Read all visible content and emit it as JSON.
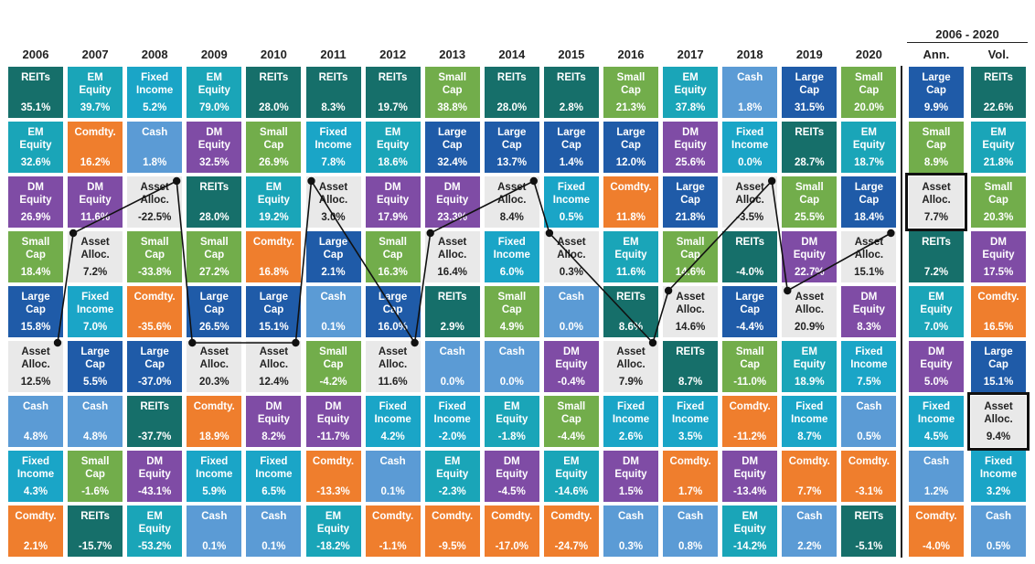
{
  "colors": {
    "REITs": "#166f6a",
    "EM Equity": "#1aa5b8",
    "Fixed Income": "#1aa5c7",
    "Cash": "#5b9bd5",
    "Comdty.": "#ef7e2d",
    "DM Equity": "#7f4ca5",
    "Small Cap": "#72ad4b",
    "Large Cap": "#1f5ba8",
    "Asset Alloc.": "#e9e9e9"
  },
  "period_label": "2006 - 2020",
  "chart_data": {
    "type": "table",
    "years": [
      "2006",
      "2007",
      "2008",
      "2009",
      "2010",
      "2011",
      "2012",
      "2013",
      "2014",
      "2015",
      "2016",
      "2017",
      "2018",
      "2019",
      "2020"
    ],
    "summary_columns": [
      "Ann.",
      "Vol."
    ],
    "columns": [
      [
        [
          "REITs",
          "35.1%"
        ],
        [
          "EM\nEquity",
          "32.6%"
        ],
        [
          "DM\nEquity",
          "26.9%"
        ],
        [
          "Small\nCap",
          "18.4%"
        ],
        [
          "Large\nCap",
          "15.8%"
        ],
        [
          "Asset\nAlloc.",
          "12.5%"
        ],
        [
          "Cash",
          "4.8%"
        ],
        [
          "Fixed\nIncome",
          "4.3%"
        ],
        [
          "Comdty.",
          "2.1%"
        ]
      ],
      [
        [
          "EM\nEquity",
          "39.7%"
        ],
        [
          "Comdty.",
          "16.2%"
        ],
        [
          "DM\nEquity",
          "11.6%"
        ],
        [
          "Asset\nAlloc.",
          "7.2%"
        ],
        [
          "Fixed\nIncome",
          "7.0%"
        ],
        [
          "Large\nCap",
          "5.5%"
        ],
        [
          "Cash",
          "4.8%"
        ],
        [
          "Small\nCap",
          "-1.6%"
        ],
        [
          "REITs",
          "-15.7%"
        ]
      ],
      [
        [
          "Fixed\nIncome",
          "5.2%"
        ],
        [
          "Cash",
          "1.8%"
        ],
        [
          "Asset\nAlloc.",
          "-22.5%"
        ],
        [
          "Small\nCap",
          "-33.8%"
        ],
        [
          "Comdty.",
          "-35.6%"
        ],
        [
          "Large\nCap",
          "-37.0%"
        ],
        [
          "REITs",
          "-37.7%"
        ],
        [
          "DM\nEquity",
          "-43.1%"
        ],
        [
          "EM\nEquity",
          "-53.2%"
        ]
      ],
      [
        [
          "EM\nEquity",
          "79.0%"
        ],
        [
          "DM\nEquity",
          "32.5%"
        ],
        [
          "REITs",
          "28.0%"
        ],
        [
          "Small\nCap",
          "27.2%"
        ],
        [
          "Large\nCap",
          "26.5%"
        ],
        [
          "Asset\nAlloc.",
          "20.3%"
        ],
        [
          "Comdty.",
          "18.9%"
        ],
        [
          "Fixed\nIncome",
          "5.9%"
        ],
        [
          "Cash",
          "0.1%"
        ]
      ],
      [
        [
          "REITs",
          "28.0%"
        ],
        [
          "Small\nCap",
          "26.9%"
        ],
        [
          "EM\nEquity",
          "19.2%"
        ],
        [
          "Comdty.",
          "16.8%"
        ],
        [
          "Large\nCap",
          "15.1%"
        ],
        [
          "Asset\nAlloc.",
          "12.4%"
        ],
        [
          "DM\nEquity",
          "8.2%"
        ],
        [
          "Fixed\nIncome",
          "6.5%"
        ],
        [
          "Cash",
          "0.1%"
        ]
      ],
      [
        [
          "REITs",
          "8.3%"
        ],
        [
          "Fixed\nIncome",
          "7.8%"
        ],
        [
          "Asset\nAlloc.",
          "3.0%"
        ],
        [
          "Large\nCap",
          "2.1%"
        ],
        [
          "Cash",
          "0.1%"
        ],
        [
          "Small\nCap",
          "-4.2%"
        ],
        [
          "DM\nEquity",
          "-11.7%"
        ],
        [
          "Comdty.",
          "-13.3%"
        ],
        [
          "EM\nEquity",
          "-18.2%"
        ]
      ],
      [
        [
          "REITs",
          "19.7%"
        ],
        [
          "EM\nEquity",
          "18.6%"
        ],
        [
          "DM\nEquity",
          "17.9%"
        ],
        [
          "Small\nCap",
          "16.3%"
        ],
        [
          "Large\nCap",
          "16.0%"
        ],
        [
          "Asset\nAlloc.",
          "11.6%"
        ],
        [
          "Fixed\nIncome",
          "4.2%"
        ],
        [
          "Cash",
          "0.1%"
        ],
        [
          "Comdty.",
          "-1.1%"
        ]
      ],
      [
        [
          "Small\nCap",
          "38.8%"
        ],
        [
          "Large\nCap",
          "32.4%"
        ],
        [
          "DM\nEquity",
          "23.3%"
        ],
        [
          "Asset\nAlloc.",
          "16.4%"
        ],
        [
          "REITs",
          "2.9%"
        ],
        [
          "Cash",
          "0.0%"
        ],
        [
          "Fixed\nIncome",
          "-2.0%"
        ],
        [
          "EM\nEquity",
          "-2.3%"
        ],
        [
          "Comdty.",
          "-9.5%"
        ]
      ],
      [
        [
          "REITs",
          "28.0%"
        ],
        [
          "Large\nCap",
          "13.7%"
        ],
        [
          "Asset\nAlloc.",
          "8.4%"
        ],
        [
          "Fixed\nIncome",
          "6.0%"
        ],
        [
          "Small\nCap",
          "4.9%"
        ],
        [
          "Cash",
          "0.0%"
        ],
        [
          "EM\nEquity",
          "-1.8%"
        ],
        [
          "DM\nEquity",
          "-4.5%"
        ],
        [
          "Comdty.",
          "-17.0%"
        ]
      ],
      [
        [
          "REITs",
          "2.8%"
        ],
        [
          "Large\nCap",
          "1.4%"
        ],
        [
          "Fixed\nIncome",
          "0.5%"
        ],
        [
          "Asset\nAlloc.",
          "0.3%"
        ],
        [
          "Cash",
          "0.0%"
        ],
        [
          "DM\nEquity",
          "-0.4%"
        ],
        [
          "Small\nCap",
          "-4.4%"
        ],
        [
          "EM\nEquity",
          "-14.6%"
        ],
        [
          "Comdty.",
          "-24.7%"
        ]
      ],
      [
        [
          "Small\nCap",
          "21.3%"
        ],
        [
          "Large\nCap",
          "12.0%"
        ],
        [
          "Comdty.",
          "11.8%"
        ],
        [
          "EM\nEquity",
          "11.6%"
        ],
        [
          "REITs",
          "8.6%"
        ],
        [
          "Asset\nAlloc.",
          "7.9%"
        ],
        [
          "Fixed\nIncome",
          "2.6%"
        ],
        [
          "DM\nEquity",
          "1.5%"
        ],
        [
          "Cash",
          "0.3%"
        ]
      ],
      [
        [
          "EM\nEquity",
          "37.8%"
        ],
        [
          "DM\nEquity",
          "25.6%"
        ],
        [
          "Large\nCap",
          "21.8%"
        ],
        [
          "Small\nCap",
          "14.6%"
        ],
        [
          "Asset\nAlloc.",
          "14.6%"
        ],
        [
          "REITs",
          "8.7%"
        ],
        [
          "Fixed\nIncome",
          "3.5%"
        ],
        [
          "Comdty.",
          "1.7%"
        ],
        [
          "Cash",
          "0.8%"
        ]
      ],
      [
        [
          "Cash",
          "1.8%"
        ],
        [
          "Fixed\nIncome",
          "0.0%"
        ],
        [
          "Asset\nAlloc.",
          "-3.5%"
        ],
        [
          "REITs",
          "-4.0%"
        ],
        [
          "Large\nCap",
          "-4.4%"
        ],
        [
          "Small\nCap",
          "-11.0%"
        ],
        [
          "Comdty.",
          "-11.2%"
        ],
        [
          "DM\nEquity",
          "-13.4%"
        ],
        [
          "EM\nEquity",
          "-14.2%"
        ]
      ],
      [
        [
          "Large\nCap",
          "31.5%"
        ],
        [
          "REITs",
          "28.7%"
        ],
        [
          "Small\nCap",
          "25.5%"
        ],
        [
          "DM\nEquity",
          "22.7%"
        ],
        [
          "Asset\nAlloc.",
          "20.9%"
        ],
        [
          "EM\nEquity",
          "18.9%"
        ],
        [
          "Fixed\nIncome",
          "8.7%"
        ],
        [
          "Comdty.",
          "7.7%"
        ],
        [
          "Cash",
          "2.2%"
        ]
      ],
      [
        [
          "Small\nCap",
          "20.0%"
        ],
        [
          "EM\nEquity",
          "18.7%"
        ],
        [
          "Large\nCap",
          "18.4%"
        ],
        [
          "Asset\nAlloc.",
          "15.1%"
        ],
        [
          "DM\nEquity",
          "8.3%"
        ],
        [
          "Fixed\nIncome",
          "7.5%"
        ],
        [
          "Cash",
          "0.5%"
        ],
        [
          "Comdty.",
          "-3.1%"
        ],
        [
          "REITs",
          "-5.1%"
        ]
      ]
    ],
    "summary": [
      [
        [
          "Large\nCap",
          "9.9%"
        ],
        [
          "Small\nCap",
          "8.9%"
        ],
        [
          "Asset\nAlloc.",
          "7.7%"
        ],
        [
          "REITs",
          "7.2%"
        ],
        [
          "EM\nEquity",
          "7.0%"
        ],
        [
          "DM\nEquity",
          "5.0%"
        ],
        [
          "Fixed\nIncome",
          "4.5%"
        ],
        [
          "Cash",
          "1.2%"
        ],
        [
          "Comdty.",
          "-4.0%"
        ]
      ],
      [
        [
          "REITs",
          "22.6%"
        ],
        [
          "EM\nEquity",
          "21.8%"
        ],
        [
          "Small\nCap",
          "20.3%"
        ],
        [
          "DM\nEquity",
          "17.5%"
        ],
        [
          "Comdty.",
          "16.5%"
        ],
        [
          "Large\nCap",
          "15.1%"
        ],
        [
          "Asset\nAlloc.",
          "9.4%"
        ],
        [
          "Fixed\nIncome",
          "3.2%"
        ],
        [
          "Cash",
          "0.5%"
        ]
      ]
    ]
  }
}
